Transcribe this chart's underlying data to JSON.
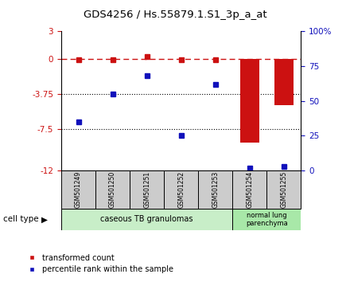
{
  "title": "GDS4256 / Hs.55879.1.S1_3p_a_at",
  "samples": [
    "GSM501249",
    "GSM501250",
    "GSM501251",
    "GSM501252",
    "GSM501253",
    "GSM501254",
    "GSM501255"
  ],
  "transformed_count": [
    -0.08,
    -0.05,
    0.28,
    -0.08,
    -0.07,
    -9.0,
    -5.0
  ],
  "percentile_rank": [
    35,
    55,
    68,
    25,
    62,
    2,
    3
  ],
  "ylim_left": [
    -12,
    3
  ],
  "ylim_right": [
    0,
    100
  ],
  "yticks_left": [
    3,
    0,
    -3.75,
    -7.5,
    -12
  ],
  "yticks_right": [
    0,
    25,
    50,
    75,
    100
  ],
  "ytick_labels_right_top": "100%",
  "group1_label": "caseous TB granulomas",
  "group2_label": "normal lung\nparenchyma",
  "cell_type_label": "cell type",
  "red_color": "#cc1111",
  "blue_color": "#1111bb",
  "group_bg_color1": "#c8eec8",
  "group_bg_color2": "#a8e8a8",
  "sample_bg_color": "#cccccc",
  "bar_width": 0.55,
  "legend_red": "transformed count",
  "legend_blue": "percentile rank within the sample"
}
